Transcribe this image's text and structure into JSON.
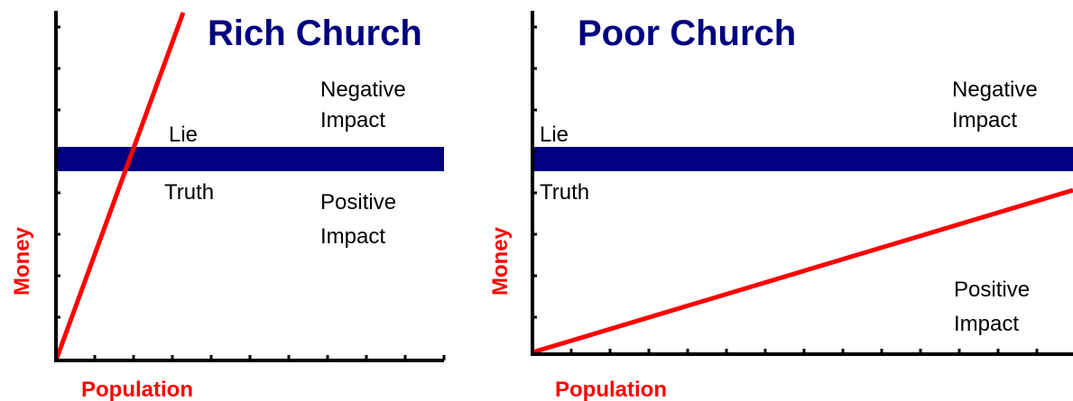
{
  "panels": [
    {
      "title": "Rich Church",
      "y_label": "Money",
      "x_label": "Population",
      "upper_label": "Lie",
      "lower_label": "Truth",
      "upper_impact": [
        "Negative",
        "Impact"
      ],
      "lower_impact": [
        "Positive",
        "Impact"
      ]
    },
    {
      "title": "Poor Church",
      "y_label": "Money",
      "x_label": "Population",
      "upper_label": "Lie",
      "lower_label": "Truth",
      "upper_impact": [
        "Negative",
        "Impact"
      ],
      "lower_impact": [
        "Positive",
        "Impact"
      ]
    }
  ]
}
